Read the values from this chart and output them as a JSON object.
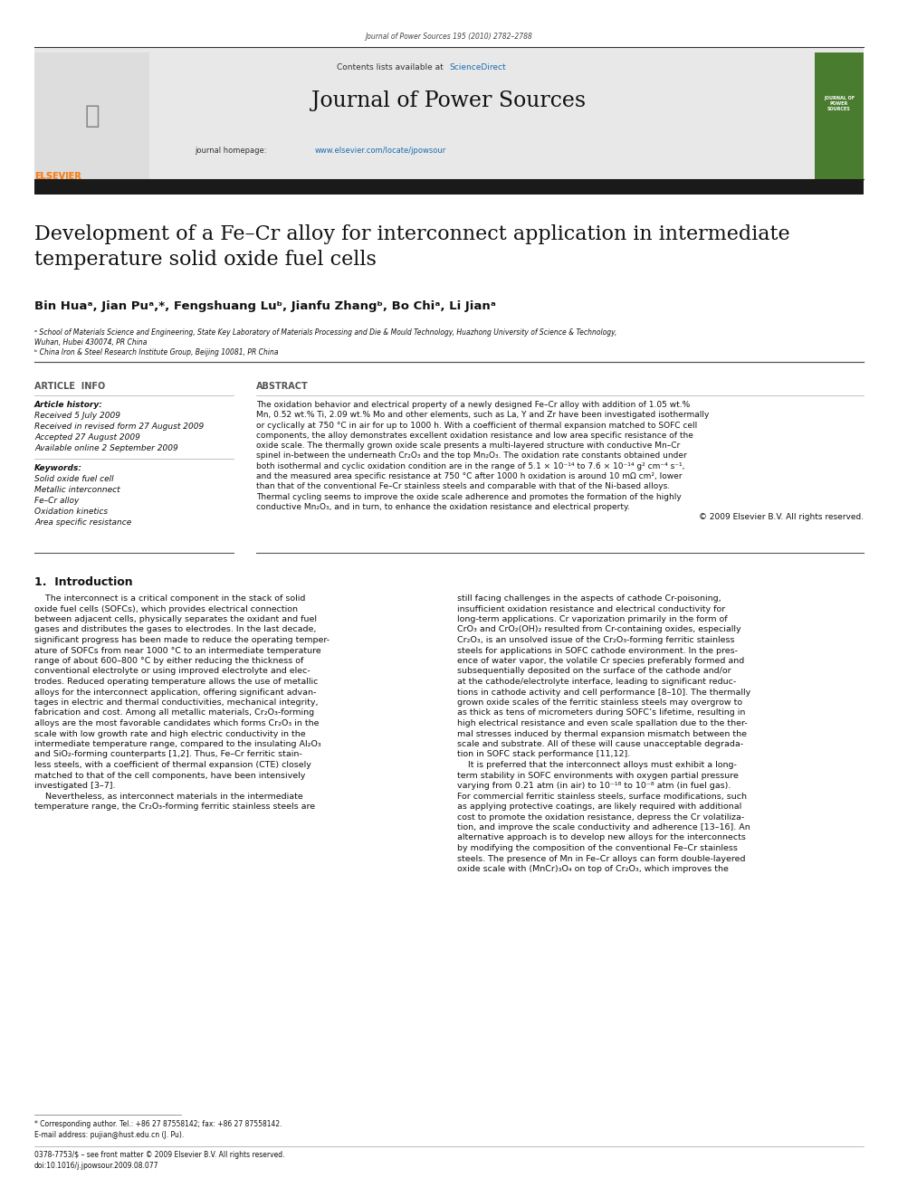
{
  "page_width": 9.92,
  "page_height": 13.23,
  "background_color": "#ffffff",
  "journal_ref": "Journal of Power Sources 195 (2010) 2782–2788",
  "journal_name": "Journal of Power Sources",
  "journal_homepage_plain": "journal homepage: ",
  "journal_homepage_url": "www.elsevier.com/locate/jpowsour",
  "header_bg": "#e8e8e8",
  "article_title": "Development of a Fe–Cr alloy for interconnect application in intermediate\ntemperature solid oxide fuel cells",
  "author_line": "Bin Huaᵃ, Jian Puᵃ,*, Fengshuang Luᵇ, Jianfu Zhangᵇ, Bo Chiᵃ, Li Jianᵃ",
  "affil_a": "ᵃ School of Materials Science and Engineering, State Key Laboratory of Materials Processing and Die & Mould Technology, Huazhong University of Science & Technology,",
  "affil_a2": "Wuhan, Hubei 430074, PR China",
  "affil_b": "ᵇ China Iron & Steel Research Institute Group, Beijing 10081, PR China",
  "section_article_info": "ARTICLE  INFO",
  "section_abstract": "ABSTRACT",
  "article_history_label": "Article history:",
  "received": "Received 5 July 2009",
  "revised": "Received in revised form 27 August 2009",
  "accepted": "Accepted 27 August 2009",
  "available": "Available online 2 September 2009",
  "keywords_label": "Keywords:",
  "keywords": [
    "Solid oxide fuel cell",
    "Metallic interconnect",
    "Fe–Cr alloy",
    "Oxidation kinetics",
    "Area specific resistance"
  ],
  "abstract_lines": [
    "The oxidation behavior and electrical property of a newly designed Fe–Cr alloy with addition of 1.05 wt.%",
    "Mn, 0.52 wt.% Ti, 2.09 wt.% Mo and other elements, such as La, Y and Zr have been investigated isothermally",
    "or cyclically at 750 °C in air for up to 1000 h. With a coefficient of thermal expansion matched to SOFC cell",
    "components, the alloy demonstrates excellent oxidation resistance and low area specific resistance of the",
    "oxide scale. The thermally grown oxide scale presents a multi-layered structure with conductive Mn–Cr",
    "spinel in-between the underneath Cr₂O₃ and the top Mn₂O₃. The oxidation rate constants obtained under",
    "both isothermal and cyclic oxidation condition are in the range of 5.1 × 10⁻¹⁴ to 7.6 × 10⁻¹⁴ g² cm⁻⁴ s⁻¹,",
    "and the measured area specific resistance at 750 °C after 1000 h oxidation is around 10 mΩ cm², lower",
    "than that of the conventional Fe–Cr stainless steels and comparable with that of the Ni-based alloys.",
    "Thermal cycling seems to improve the oxide scale adherence and promotes the formation of the highly",
    "conductive Mn₂O₃, and in turn, to enhance the oxidation resistance and electrical property.",
    "© 2009 Elsevier B.V. All rights reserved."
  ],
  "intro_heading": "1.  Introduction",
  "intro_col1_lines": [
    "    The interconnect is a critical component in the stack of solid",
    "oxide fuel cells (SOFCs), which provides electrical connection",
    "between adjacent cells, physically separates the oxidant and fuel",
    "gases and distributes the gases to electrodes. In the last decade,",
    "significant progress has been made to reduce the operating temper-",
    "ature of SOFCs from near 1000 °C to an intermediate temperature",
    "range of about 600–800 °C by either reducing the thickness of",
    "conventional electrolyte or using improved electrolyte and elec-",
    "trodes. Reduced operating temperature allows the use of metallic",
    "alloys for the interconnect application, offering significant advan-",
    "tages in electric and thermal conductivities, mechanical integrity,",
    "fabrication and cost. Among all metallic materials, Cr₂O₃-forming",
    "alloys are the most favorable candidates which forms Cr₂O₃ in the",
    "scale with low growth rate and high electric conductivity in the",
    "intermediate temperature range, compared to the insulating Al₂O₃",
    "and SiO₂-forming counterparts [1,2]. Thus, Fe–Cr ferritic stain-",
    "less steels, with a coefficient of thermal expansion (CTE) closely",
    "matched to that of the cell components, have been intensively",
    "investigated [3–7].",
    "    Nevertheless, as interconnect materials in the intermediate",
    "temperature range, the Cr₂O₃-forming ferritic stainless steels are"
  ],
  "intro_col2_lines": [
    "still facing challenges in the aspects of cathode Cr-poisoning,",
    "insufficient oxidation resistance and electrical conductivity for",
    "long-term applications. Cr vaporization primarily in the form of",
    "CrO₃ and CrO₂(OH)₂ resulted from Cr-containing oxides, especially",
    "Cr₂O₃, is an unsolved issue of the Cr₂O₃-forming ferritic stainless",
    "steels for applications in SOFC cathode environment. In the pres-",
    "ence of water vapor, the volatile Cr species preferably formed and",
    "subsequentially deposited on the surface of the cathode and/or",
    "at the cathode/electrolyte interface, leading to significant reduc-",
    "tions in cathode activity and cell performance [8–10]. The thermally",
    "grown oxide scales of the ferritic stainless steels may overgrow to",
    "as thick as tens of micrometers during SOFC’s lifetime, resulting in",
    "high electrical resistance and even scale spallation due to the ther-",
    "mal stresses induced by thermal expansion mismatch between the",
    "scale and substrate. All of these will cause unacceptable degrada-",
    "tion in SOFC stack performance [11,12].",
    "    It is preferred that the interconnect alloys must exhibit a long-",
    "term stability in SOFC environments with oxygen partial pressure",
    "varying from 0.21 atm (in air) to 10⁻¹⁸ to 10⁻⁸ atm (in fuel gas).",
    "For commercial ferritic stainless steels, surface modifications, such",
    "as applying protective coatings, are likely required with additional",
    "cost to promote the oxidation resistance, depress the Cr volatiliza-",
    "tion, and improve the scale conductivity and adherence [13–16]. An",
    "alternative approach is to develop new alloys for the interconnects",
    "by modifying the composition of the conventional Fe–Cr stainless",
    "steels. The presence of Mn in Fe–Cr alloys can form double-layered",
    "oxide scale with (MnCr)₃O₄ on top of Cr₂O₃, which improves the"
  ],
  "footer_note": "* Corresponding author. Tel.: +86 27 87558142; fax: +86 27 87558142.",
  "footer_email": "E-mail address: pujian@hust.edu.cn (J. Pu).",
  "footer_issn": "0378-7753/$ – see front matter © 2009 Elsevier B.V. All rights reserved.",
  "footer_doi": "doi:10.1016/j.jpowsour.2009.08.077",
  "thick_bar_color": "#1a1a1a",
  "elsevier_orange": "#f5821f",
  "sciencedirect_blue": "#1a6db0",
  "url_blue": "#1a6db0",
  "divider_color": "#555555",
  "thin_line_color": "#aaaaaa",
  "cover_green": "#4a7c2f",
  "cover_orange_red": "#c0392b"
}
